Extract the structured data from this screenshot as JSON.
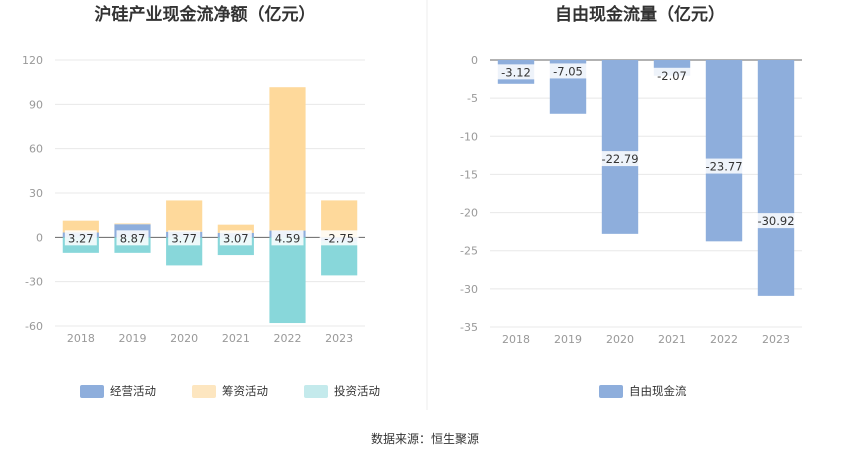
{
  "source_label": "数据来源：恒生聚源",
  "chart_data": [
    {
      "type": "bar",
      "stacked": true,
      "title": "沪硅产业现金流净额（亿元）",
      "categories": [
        "2018",
        "2019",
        "2020",
        "2021",
        "2022",
        "2023"
      ],
      "ylim": [
        -60,
        120
      ],
      "yticks": [
        -60,
        -30,
        0,
        30,
        60,
        90,
        120
      ],
      "grid": true,
      "legend_position": "bottom",
      "series": [
        {
          "name": "经营活动",
          "color": "#8eaedc",
          "values": [
            3.27,
            8.87,
            3.77,
            3.07,
            4.59,
            -2.75
          ]
        },
        {
          "name": "筹资活动",
          "color": "#fed99b",
          "values": [
            8.0,
            0.5,
            21.2,
            5.5,
            97.0,
            25.0
          ]
        },
        {
          "name": "投资活动",
          "color": "#88d7da",
          "values": [
            -10.5,
            -10.5,
            -19.0,
            -12.0,
            -58.0,
            -23.0
          ]
        }
      ],
      "data_labels": [
        "3.27",
        "8.87",
        "3.77",
        "3.07",
        "4.59",
        "-2.75"
      ]
    },
    {
      "type": "bar",
      "title": "自由现金流量（亿元）",
      "categories": [
        "2018",
        "2019",
        "2020",
        "2021",
        "2022",
        "2023"
      ],
      "ylim": [
        -35,
        0
      ],
      "yticks": [
        -35,
        -30,
        -25,
        -20,
        -15,
        -10,
        -5,
        0
      ],
      "grid": true,
      "legend_position": "bottom",
      "series": [
        {
          "name": "自由现金流",
          "color": "#8eaedc",
          "values": [
            -3.12,
            -7.05,
            -22.79,
            -2.07,
            -23.77,
            -30.92
          ]
        }
      ],
      "data_labels": [
        "-3.12",
        "-7.05",
        "-22.79",
        "-2.07",
        "-23.77",
        "-30.92"
      ]
    }
  ]
}
